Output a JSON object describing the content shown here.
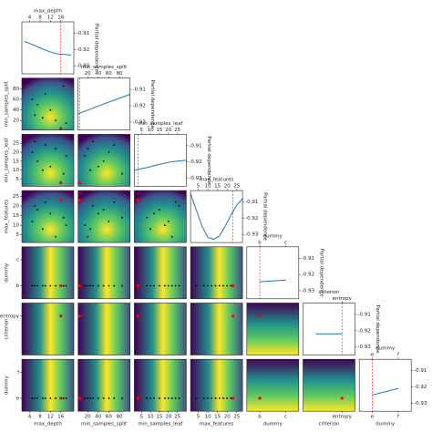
{
  "chart_data": {
    "type": "pairplot",
    "pd_label": "Partial dependence",
    "pd_ylim": [
      -0.935,
      -0.903
    ],
    "pd_yticks": [
      -0.93,
      -0.92,
      -0.91
    ],
    "line_color": "#1f77b4",
    "best_color": "red",
    "sample_color": "black",
    "dimensions": [
      {
        "name": "max_depth",
        "lim": [
          1,
          21
        ],
        "ticks": [
          4,
          8,
          12,
          16
        ],
        "best": 16,
        "samples": [
          5,
          7,
          9,
          10,
          12,
          14,
          17,
          18,
          6
        ],
        "x": [
          2,
          5,
          8,
          11,
          14,
          17,
          20
        ],
        "values": [
          -0.915,
          -0.917,
          -0.919,
          -0.921,
          -0.9225,
          -0.923,
          -0.9235
        ]
      },
      {
        "name": "min_samples_split",
        "lim": [
          2,
          100
        ],
        "ticks": [
          20,
          40,
          60,
          80
        ],
        "best": 5,
        "samples": [
          60,
          50,
          25,
          70,
          40,
          20,
          85,
          15,
          30
        ],
        "x": [
          2,
          50,
          100
        ],
        "values": [
          -0.925,
          -0.919,
          -0.913
        ]
      },
      {
        "name": "min_samples_leaf",
        "lim": [
          1,
          30
        ],
        "ticks": [
          5,
          10,
          15,
          20,
          25
        ],
        "best": 3,
        "samples": [
          20,
          15,
          10,
          24,
          12,
          22,
          8,
          18,
          26
        ],
        "x": [
          1,
          8,
          15,
          22,
          30
        ],
        "values": [
          -0.925,
          -0.9235,
          -0.9215,
          -0.9198,
          -0.919
        ]
      },
      {
        "name": "max_features",
        "lim": [
          1,
          28
        ],
        "ticks": [
          5,
          10,
          15,
          20,
          25
        ],
        "best": 23,
        "samples": [
          12,
          18,
          8,
          22,
          16,
          4,
          14,
          10,
          20
        ],
        "x": [
          1,
          4,
          7,
          10,
          13,
          16,
          19,
          22,
          25,
          28
        ],
        "values": [
          -0.905,
          -0.915,
          -0.925,
          -0.932,
          -0.933,
          -0.931,
          -0.925,
          -0.918,
          -0.912,
          -0.908
        ]
      },
      {
        "name": "dummy",
        "categories": [
          "b",
          "c"
        ],
        "best": "b",
        "samples": [
          "b",
          "b",
          "b",
          "b",
          "b",
          "b",
          "b",
          "b",
          "b"
        ],
        "values": [
          -0.9245,
          -0.9235
        ]
      },
      {
        "name": "criterion",
        "categories": [
          null,
          "entropy"
        ],
        "best": "entropy",
        "values": [
          -0.922,
          -0.922
        ]
      },
      {
        "name": "dummy",
        "categories": [
          "e",
          "f"
        ],
        "best": "e",
        "samples": [
          "e",
          "e",
          "e",
          "e",
          "e",
          "e",
          "e",
          "e",
          "e"
        ],
        "values": [
          -0.925,
          -0.921
        ]
      }
    ]
  }
}
